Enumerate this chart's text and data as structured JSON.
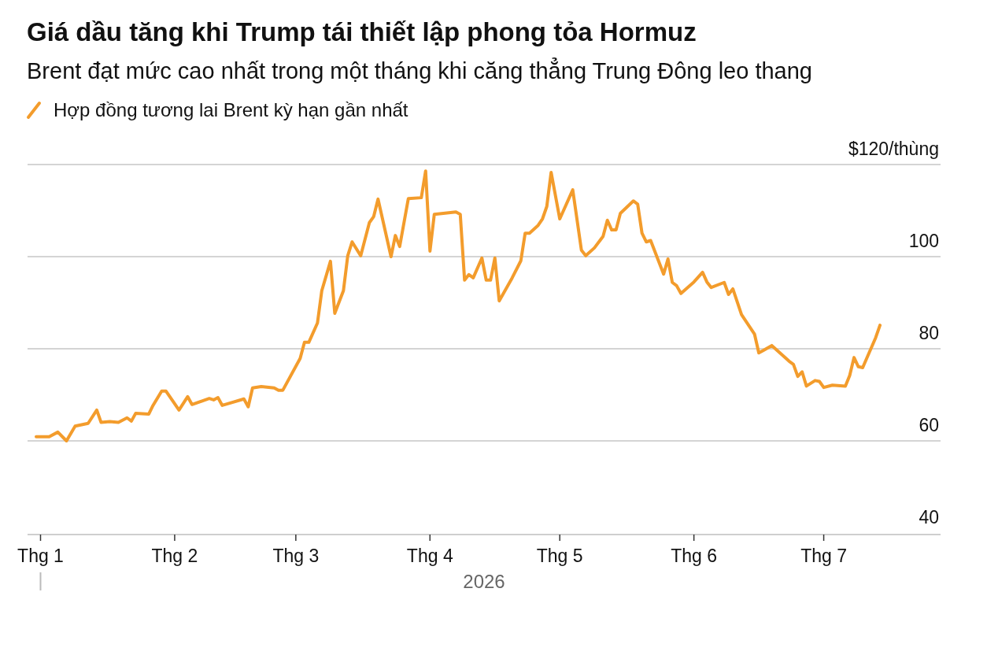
{
  "chart_data": {
    "type": "line",
    "title": "Giá dầu tăng khi Trump tái thiết lập phong tỏa Hormuz",
    "subtitle": "Brent đạt mức cao nhất trong một tháng khi căng thẳng Trung Đông leo thang",
    "xlabel": "2026",
    "legend": "top left",
    "grid": "y",
    "marker": "none",
    "line_style": "solid",
    "xlim": [
      "2025-12-29",
      "2026-07-28"
    ],
    "xticks": [
      {
        "value": "2026-01-01",
        "label": "Thg 1"
      },
      {
        "value": "2026-02-01",
        "label": "Thg 2"
      },
      {
        "value": "2026-03-01",
        "label": "Thg 3"
      },
      {
        "value": "2026-04-01",
        "label": "Thg 4"
      },
      {
        "value": "2026-05-01",
        "label": "Thg 5"
      },
      {
        "value": "2026-06-01",
        "label": "Thg 6"
      },
      {
        "value": "2026-07-01",
        "label": "Thg 7"
      }
    ],
    "ylim": [
      40,
      120
    ],
    "yticks": [
      40,
      60,
      80,
      100,
      {
        "value": 120,
        "label": "$120/thùng"
      }
    ],
    "x": [
      "2025-12-31",
      "2026-01-03",
      "2026-01-05",
      "2026-01-07",
      "2026-01-09",
      "2026-01-12",
      "2026-01-14",
      "2026-01-15",
      "2026-01-17",
      "2026-01-19",
      "2026-01-21",
      "2026-01-22",
      "2026-01-23",
      "2026-01-26",
      "2026-01-27",
      "2026-01-29",
      "2026-01-30",
      "2026-02-02",
      "2026-02-04",
      "2026-02-05",
      "2026-02-09",
      "2026-02-10",
      "2026-02-11",
      "2026-02-12",
      "2026-02-17",
      "2026-02-18",
      "2026-02-19",
      "2026-02-21",
      "2026-02-24",
      "2026-02-25",
      "2026-02-26",
      "2026-03-02",
      "2026-03-03",
      "2026-03-04",
      "2026-03-06",
      "2026-03-07",
      "2026-03-09",
      "2026-03-10",
      "2026-03-12",
      "2026-03-13",
      "2026-03-14",
      "2026-03-16",
      "2026-03-18",
      "2026-03-19",
      "2026-03-20",
      "2026-03-23",
      "2026-03-24",
      "2026-03-25",
      "2026-03-27",
      "2026-03-30",
      "2026-03-31",
      "2026-04-01",
      "2026-04-02",
      "2026-04-07",
      "2026-04-08",
      "2026-04-09",
      "2026-04-10",
      "2026-04-11",
      "2026-04-13",
      "2026-04-14",
      "2026-04-15",
      "2026-04-16",
      "2026-04-17",
      "2026-04-20",
      "2026-04-22",
      "2026-04-23",
      "2026-04-24",
      "2026-04-26",
      "2026-04-27",
      "2026-04-28",
      "2026-04-29",
      "2026-05-01",
      "2026-05-04",
      "2026-05-06",
      "2026-05-07",
      "2026-05-09",
      "2026-05-11",
      "2026-05-12",
      "2026-05-13",
      "2026-05-14",
      "2026-05-15",
      "2026-05-18",
      "2026-05-19",
      "2026-05-20",
      "2026-05-21",
      "2026-05-22",
      "2026-05-25",
      "2026-05-26",
      "2026-05-27",
      "2026-05-28",
      "2026-05-29",
      "2026-06-01",
      "2026-06-03",
      "2026-06-04",
      "2026-06-05",
      "2026-06-08",
      "2026-06-09",
      "2026-06-10",
      "2026-06-12",
      "2026-06-15",
      "2026-06-16",
      "2026-06-17",
      "2026-06-19",
      "2026-06-23",
      "2026-06-24",
      "2026-06-25",
      "2026-06-26",
      "2026-06-27",
      "2026-06-29",
      "2026-06-30",
      "2026-07-01",
      "2026-07-03",
      "2026-07-06",
      "2026-07-07",
      "2026-07-08",
      "2026-07-09",
      "2026-07-10",
      "2026-07-13",
      "2026-07-14"
    ],
    "series": [
      {
        "name": "Hợp đồng tương lai Brent kỳ hạn gần nhất",
        "color": "#f39c2c",
        "values": [
          60.9,
          60.9,
          61.9,
          60,
          63.2,
          63.8,
          66.7,
          64,
          64.2,
          64,
          65,
          64.3,
          66,
          65.8,
          67.7,
          70.8,
          70.8,
          66.7,
          69.6,
          67.9,
          69.2,
          68.9,
          69.4,
          67.7,
          69.1,
          67.4,
          71.5,
          71.8,
          71.5,
          71,
          71,
          77.9,
          81.4,
          81.4,
          85.6,
          92.6,
          99,
          87.7,
          92.6,
          100.2,
          103.2,
          100.2,
          107.4,
          108.7,
          112.5,
          100,
          104.6,
          102.2,
          112.6,
          112.8,
          118.6,
          101.2,
          109.2,
          109.7,
          109.2,
          94.9,
          96.1,
          95.4,
          99.7,
          94.9,
          94.9,
          99.7,
          90.4,
          95.4,
          99.1,
          105.1,
          105.1,
          106.8,
          108.2,
          110.9,
          118.3,
          108.2,
          114.5,
          101.4,
          100.2,
          101.9,
          104.4,
          107.9,
          105.8,
          105.8,
          109.4,
          112.1,
          111.4,
          105.1,
          103.2,
          103.5,
          96.2,
          99.5,
          94.4,
          93.7,
          92,
          94.5,
          96.6,
          94.5,
          93.3,
          94.4,
          91.8,
          93,
          87.4,
          83.2,
          79.1,
          79.6,
          80.7,
          77.3,
          76.6,
          74,
          75,
          71.9,
          73.1,
          72.9,
          71.6,
          72.1,
          71.9,
          74.2,
          78.1,
          76.1,
          75.9,
          82.4,
          85.1
        ]
      }
    ]
  }
}
